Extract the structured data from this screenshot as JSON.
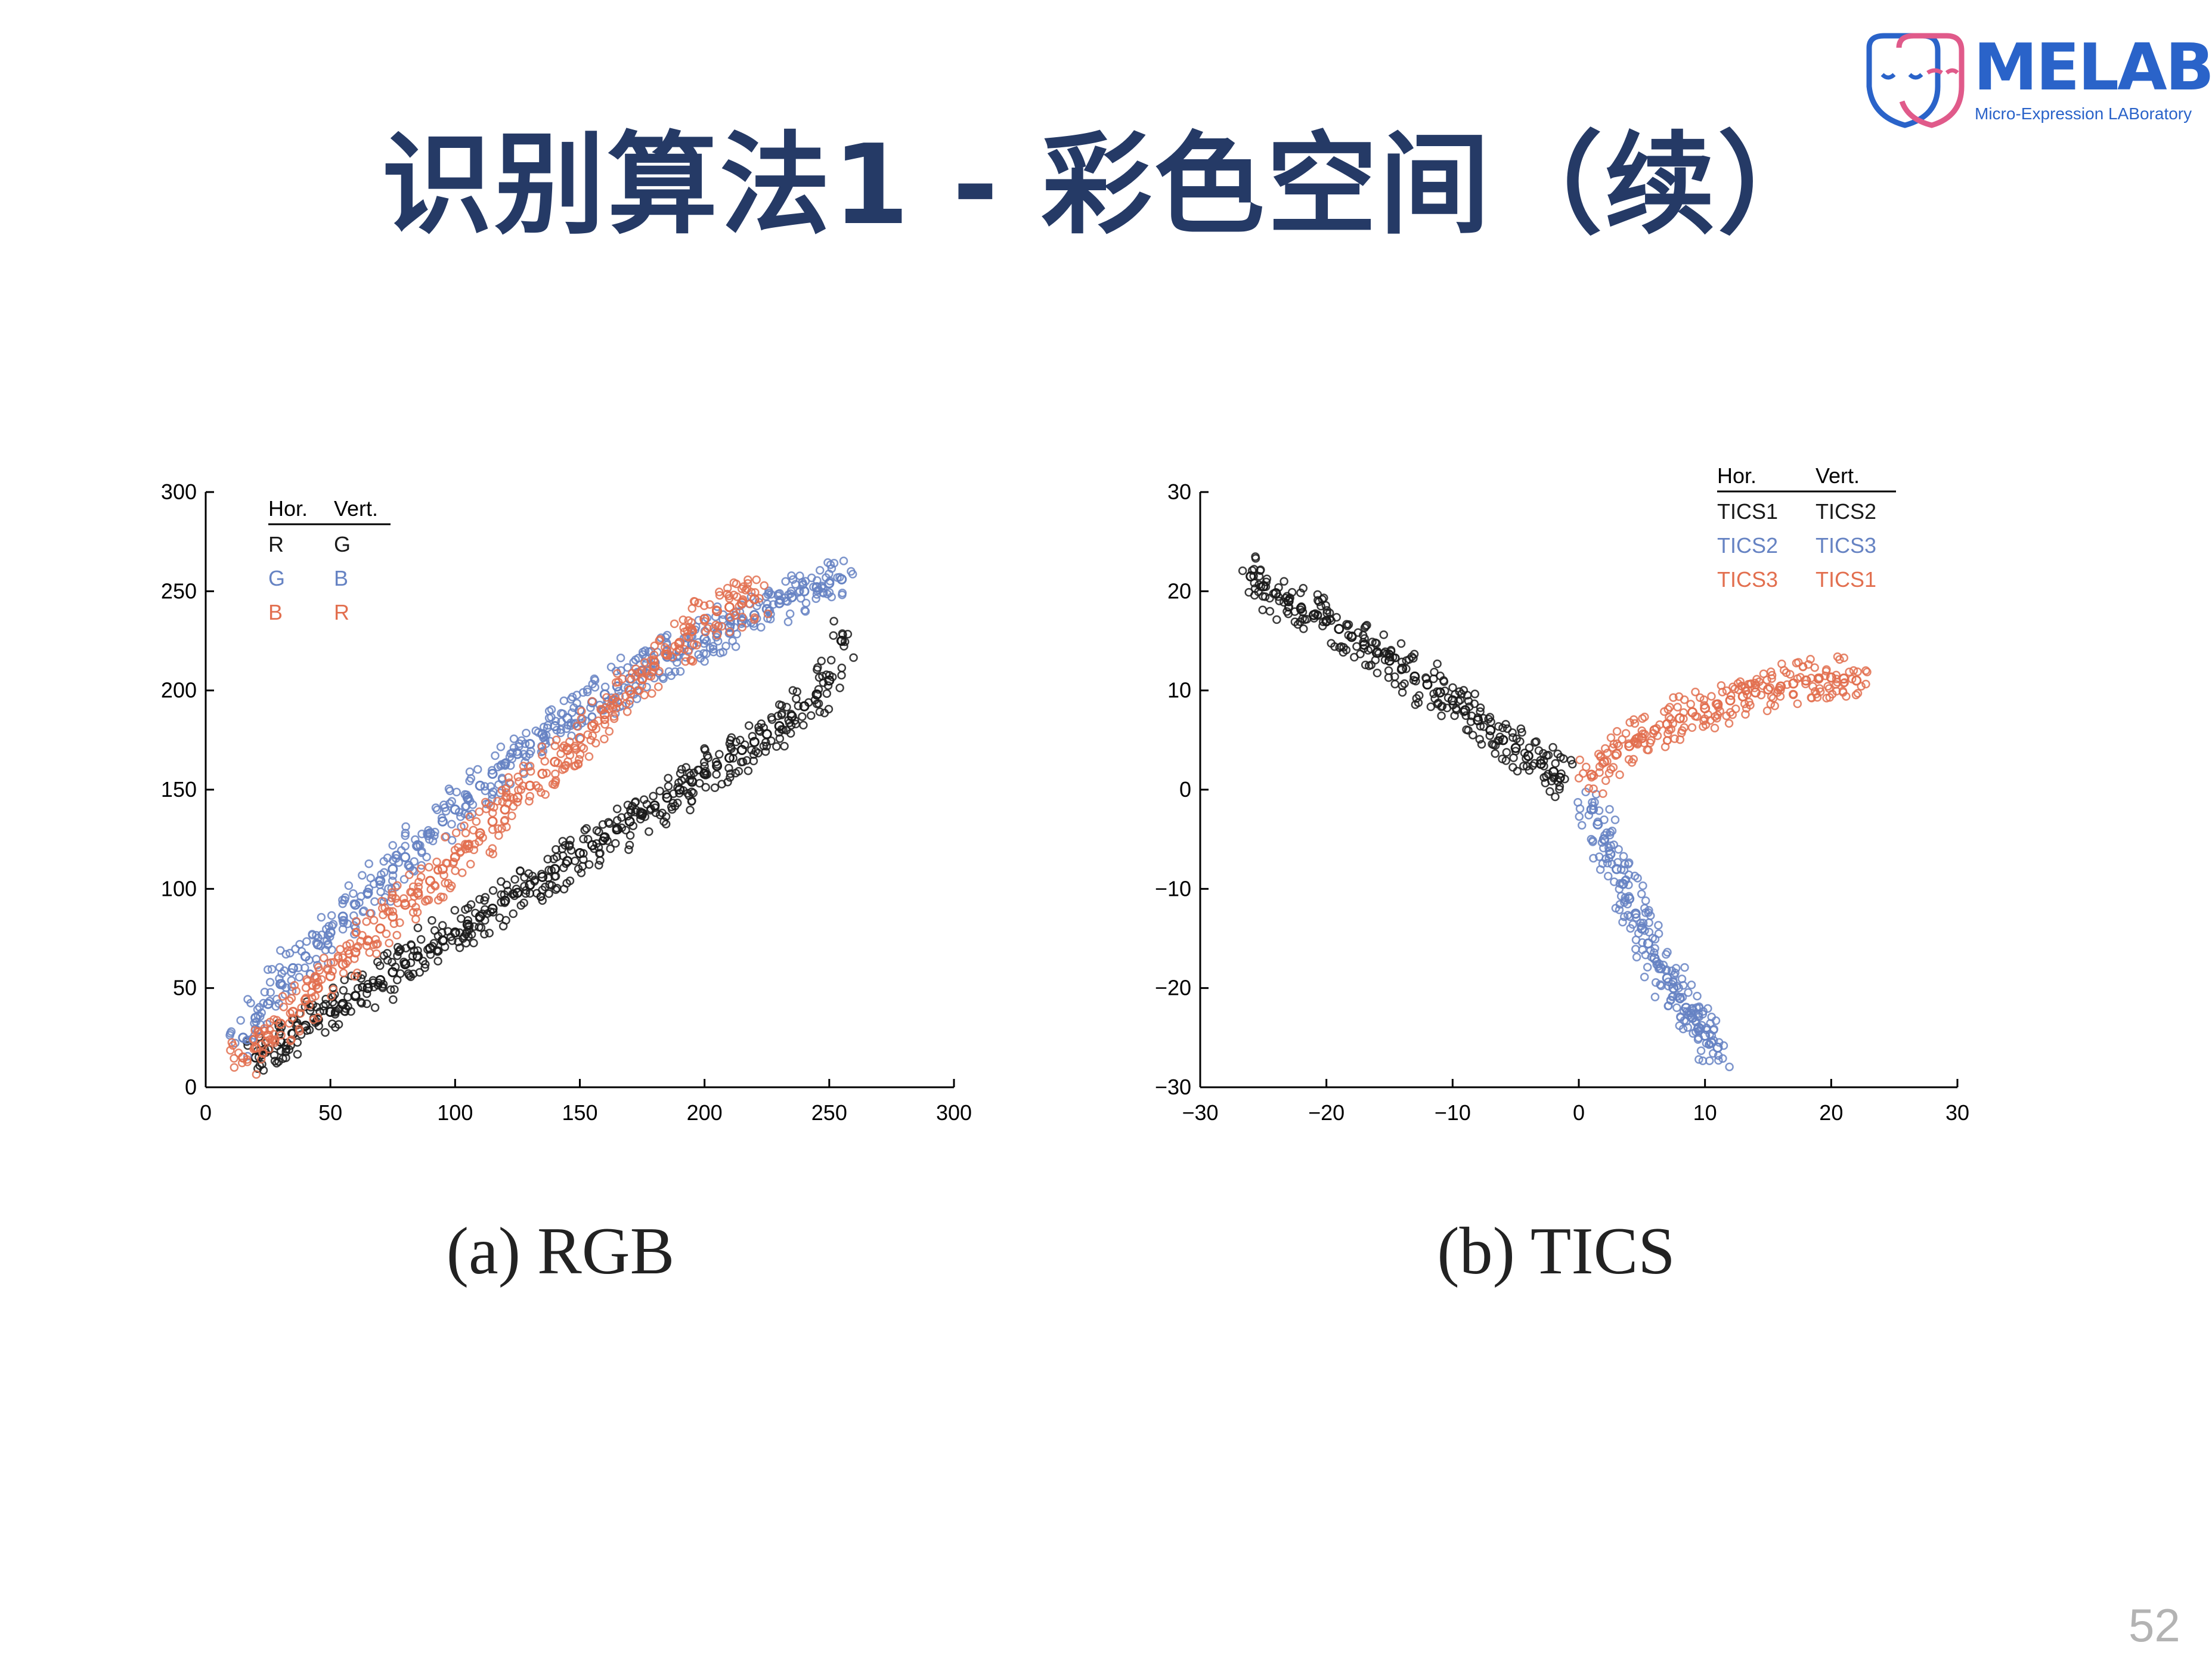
{
  "slide": {
    "title": "识别算法1 - 彩色空间（续）",
    "page_number": "52"
  },
  "logo": {
    "name": "MELAB",
    "tagline": "Micro-Expression LABoratory",
    "colors": {
      "primary": "#2a63c9",
      "secondary": "#e05a8a"
    }
  },
  "colors": {
    "black": "#1a1a1a",
    "blue": "#6683c3",
    "orange": "#e26f4f",
    "title": "#253a66"
  },
  "chart_data": [
    {
      "type": "scatter",
      "caption": "(a) RGB",
      "xlim": [
        0,
        300
      ],
      "ylim": [
        0,
        300
      ],
      "xticks": [
        0,
        50,
        100,
        150,
        200,
        250,
        300
      ],
      "yticks": [
        0,
        50,
        100,
        150,
        200,
        250,
        300
      ],
      "grid": false,
      "legend": {
        "placement": "top-left",
        "header": [
          "Hor.",
          "Vert."
        ],
        "rows": [
          {
            "hor": "R",
            "vert": "G",
            "color": "#1a1a1a"
          },
          {
            "hor": "G",
            "vert": "B",
            "color": "#6683c3"
          },
          {
            "hor": "B",
            "vert": "R",
            "color": "#e26f4f"
          }
        ]
      },
      "series": [
        {
          "color": "#1a1a1a",
          "x": [
            20,
            25,
            30,
            35,
            40,
            45,
            50,
            55,
            60,
            65,
            70,
            75,
            80,
            85,
            90,
            95,
            100,
            105,
            110,
            115,
            120,
            125,
            130,
            135,
            140,
            145,
            150,
            155,
            160,
            165,
            170,
            175,
            180,
            185,
            190,
            195,
            200,
            205,
            210,
            215,
            220,
            225,
            230,
            235,
            240,
            245,
            250,
            255
          ],
          "y": [
            15,
            19,
            23,
            27,
            31,
            34,
            38,
            42,
            46,
            50,
            54,
            58,
            62,
            66,
            70,
            74,
            78,
            82,
            86,
            90,
            94,
            98,
            102,
            106,
            110,
            114,
            118,
            122,
            126,
            130,
            134,
            138,
            142,
            146,
            150,
            154,
            158,
            162,
            166,
            170,
            174,
            178,
            182,
            187,
            192,
            198,
            205,
            225
          ]
        },
        {
          "color": "#6683c3",
          "x": [
            15,
            20,
            25,
            30,
            35,
            40,
            45,
            50,
            55,
            60,
            65,
            70,
            75,
            80,
            85,
            90,
            95,
            100,
            105,
            110,
            115,
            120,
            125,
            130,
            135,
            140,
            145,
            150,
            155,
            160,
            165,
            170,
            175,
            180,
            185,
            190,
            195,
            200,
            205,
            210,
            215,
            220,
            225,
            230,
            235,
            240,
            245,
            250,
            255
          ],
          "y": [
            25,
            35,
            42,
            52,
            60,
            66,
            72,
            78,
            86,
            92,
            98,
            104,
            110,
            116,
            122,
            128,
            134,
            140,
            146,
            152,
            158,
            163,
            168,
            173,
            178,
            182,
            186,
            190,
            194,
            198,
            202,
            206,
            210,
            214,
            217,
            220,
            223,
            226,
            229,
            232,
            235,
            238,
            241,
            244,
            247,
            250,
            252,
            254,
            256
          ]
        },
        {
          "color": "#e26f4f",
          "x": [
            15,
            20,
            25,
            30,
            35,
            40,
            45,
            50,
            55,
            60,
            65,
            70,
            75,
            80,
            85,
            90,
            95,
            100,
            105,
            110,
            115,
            120,
            125,
            130,
            135,
            140,
            145,
            150,
            155,
            160,
            165,
            170,
            175,
            180,
            185,
            190,
            195,
            200,
            205,
            210,
            215,
            220
          ],
          "y": [
            15,
            20,
            26,
            32,
            38,
            44,
            50,
            56,
            62,
            68,
            74,
            80,
            86,
            92,
            98,
            104,
            110,
            116,
            122,
            128,
            134,
            140,
            146,
            152,
            158,
            164,
            170,
            176,
            182,
            188,
            194,
            200,
            206,
            212,
            218,
            224,
            230,
            236,
            240,
            242,
            244,
            246
          ]
        }
      ]
    },
    {
      "type": "scatter",
      "caption": "(b) TICS",
      "xlim": [
        -30,
        30
      ],
      "ylim": [
        -30,
        30
      ],
      "xticks": [
        -30,
        -20,
        -10,
        0,
        10,
        20,
        30
      ],
      "yticks": [
        -30,
        -20,
        -10,
        0,
        10,
        20,
        30
      ],
      "grid": false,
      "legend": {
        "placement": "top-right",
        "header": [
          "Hor.",
          "Vert."
        ],
        "rows": [
          {
            "hor": "TICS1",
            "vert": "TICS2",
            "color": "#1a1a1a"
          },
          {
            "hor": "TICS2",
            "vert": "TICS3",
            "color": "#6683c3"
          },
          {
            "hor": "TICS3",
            "vert": "TICS1",
            "color": "#e26f4f"
          }
        ]
      },
      "series": [
        {
          "color": "#1a1a1a",
          "x": [
            -26,
            -25,
            -24,
            -23,
            -22,
            -21,
            -20,
            -19,
            -18,
            -17,
            -16,
            -15,
            -14,
            -13,
            -12,
            -11,
            -10,
            -9,
            -8,
            -7,
            -6,
            -5,
            -4,
            -3,
            -2,
            -1.5
          ],
          "y": [
            21.5,
            20.5,
            19.8,
            19,
            18.3,
            17.6,
            17,
            16.2,
            15.4,
            14.6,
            13.8,
            13,
            12.2,
            11.4,
            10.6,
            9.8,
            9,
            8,
            7,
            6,
            5,
            4.2,
            3.4,
            2.6,
            1.8,
            1.2
          ]
        },
        {
          "color": "#6683c3",
          "x": [
            1,
            1.5,
            2,
            2.5,
            3,
            3.5,
            4,
            4.5,
            5,
            5.5,
            6,
            6.5,
            7,
            7.5,
            8,
            8.5,
            9,
            9.5,
            10,
            10.5,
            11
          ],
          "y": [
            -2,
            -3.5,
            -5,
            -6.5,
            -8,
            -9.5,
            -11,
            -12.5,
            -14,
            -15.5,
            -17,
            -18,
            -19,
            -20,
            -21,
            -22,
            -23,
            -24,
            -24.8,
            -25.5,
            -26
          ]
        },
        {
          "color": "#e26f4f",
          "x": [
            1,
            2,
            3,
            4,
            5,
            6,
            7,
            8,
            9,
            10,
            11,
            12,
            13,
            14,
            15,
            16,
            17,
            18,
            19,
            20,
            21,
            22
          ],
          "y": [
            1.5,
            2.8,
            3.6,
            4.4,
            5.2,
            6,
            6.6,
            7.2,
            7.8,
            8.2,
            8.6,
            9,
            9.4,
            9.8,
            10.1,
            10.4,
            10.7,
            11,
            11.2,
            11.3,
            11.2,
            11
          ]
        }
      ]
    }
  ]
}
